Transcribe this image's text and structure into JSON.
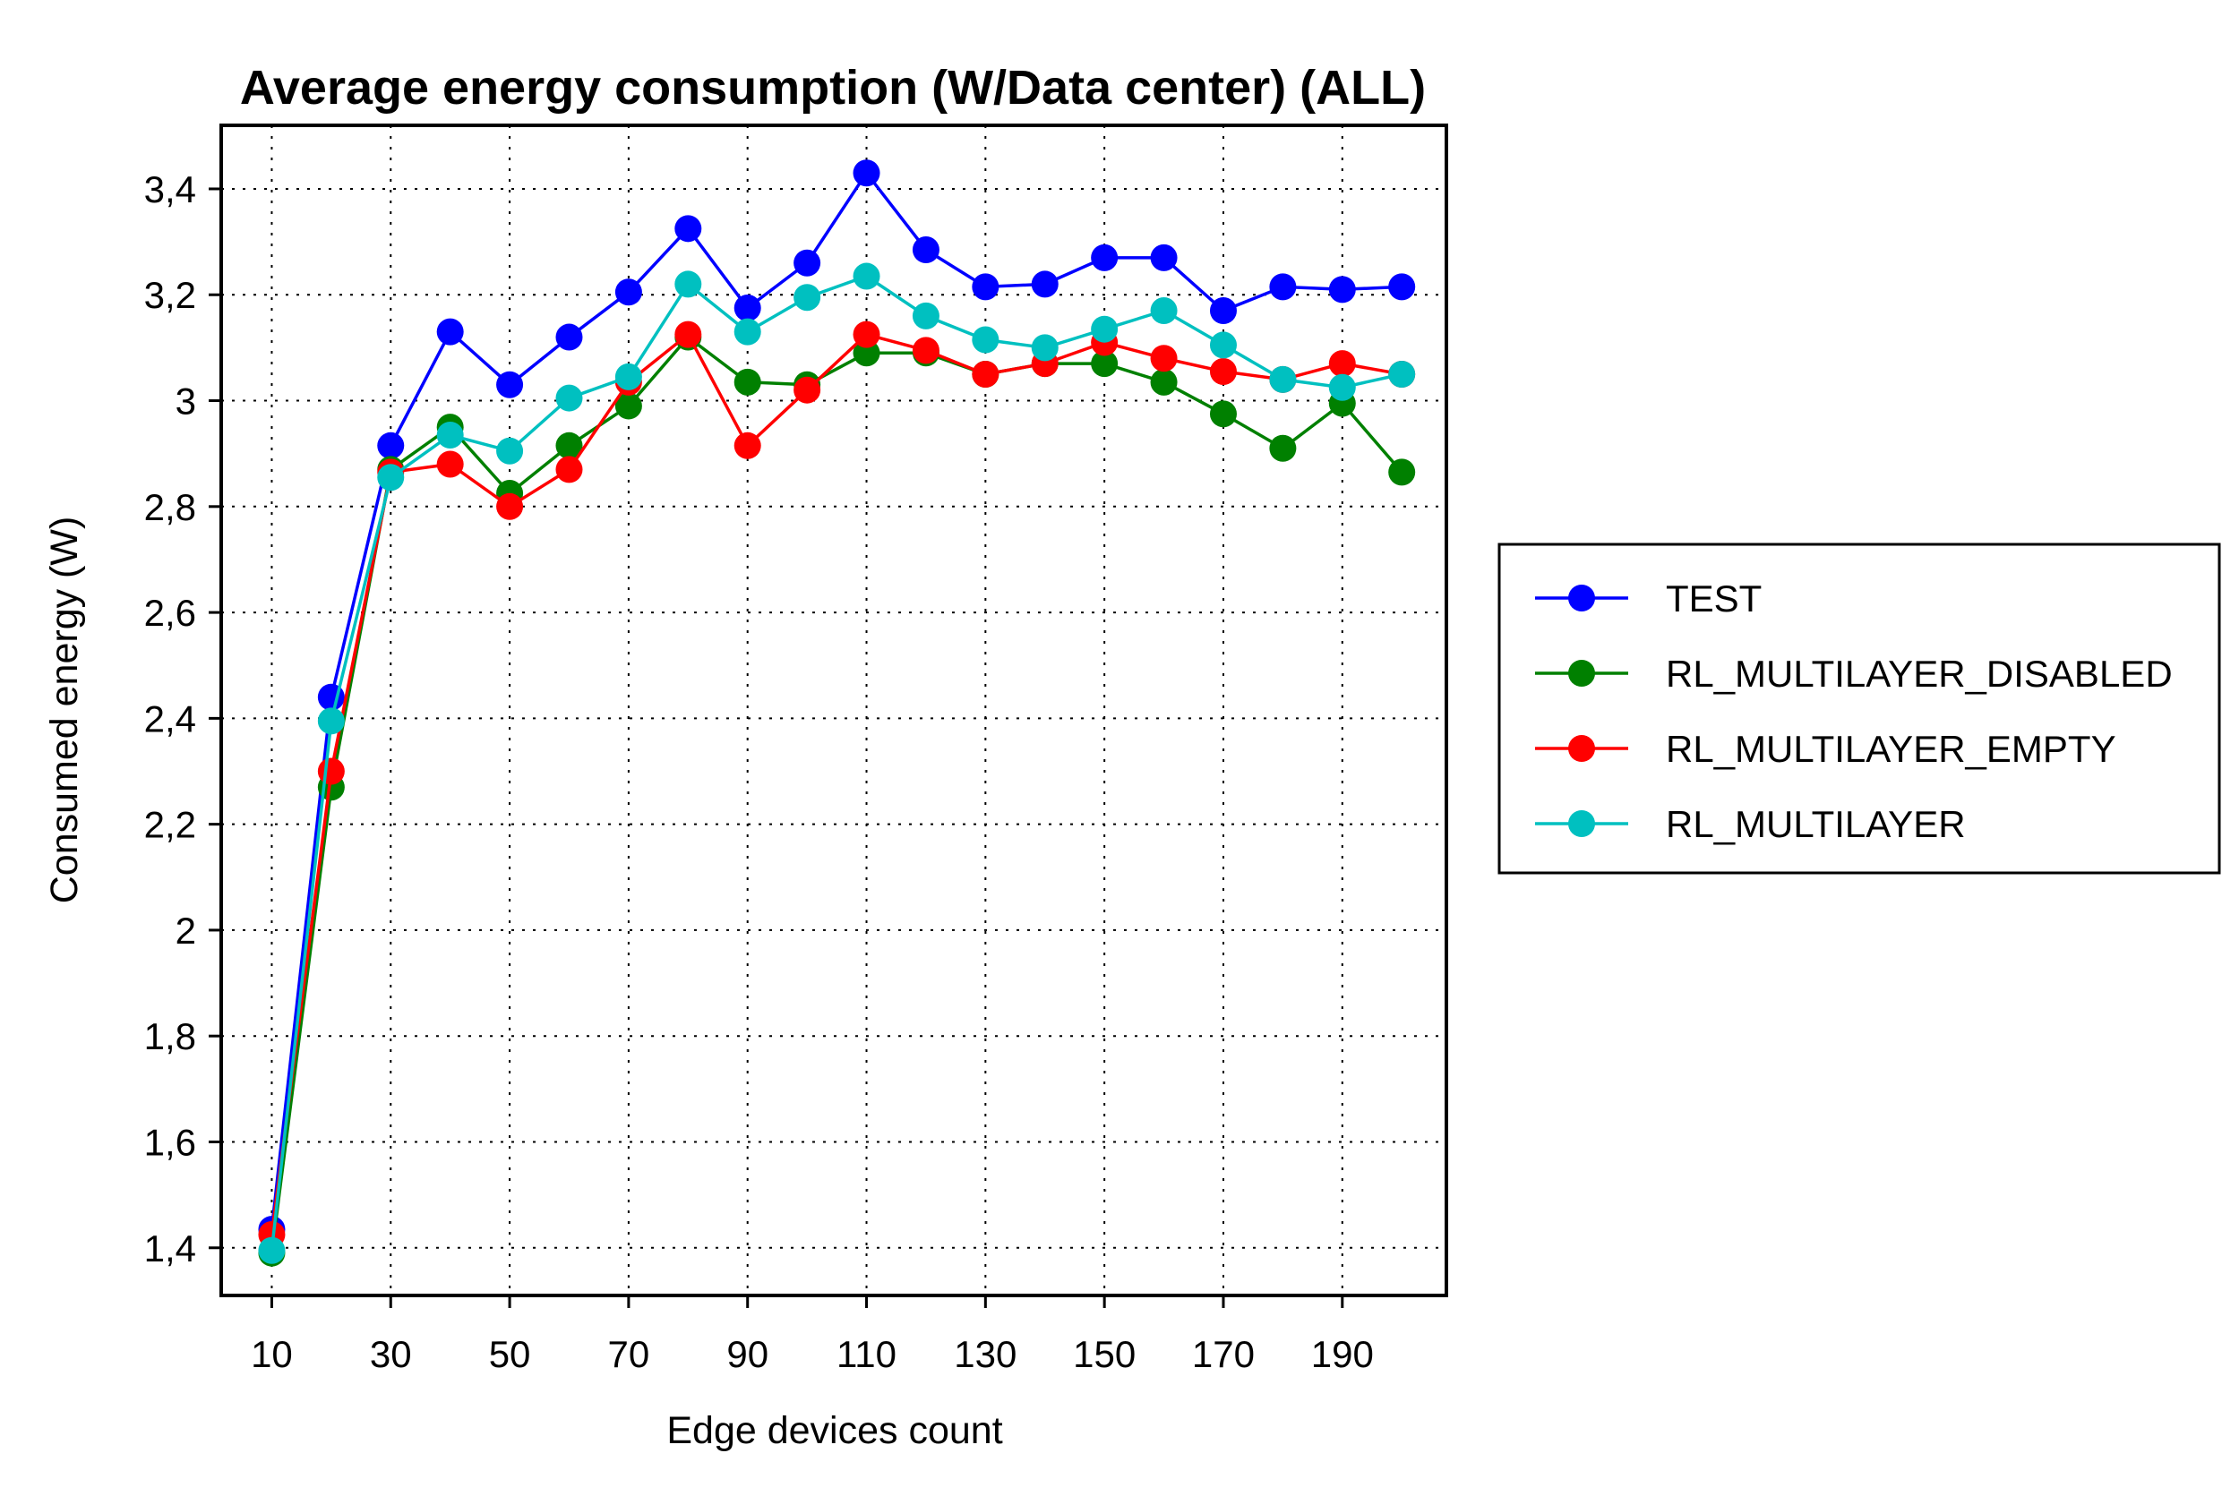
{
  "chart_data": {
    "type": "line",
    "title": "Average energy consumption (W/Data center) (ALL)",
    "xlabel": "Edge devices count",
    "ylabel": "Consumed energy (W)",
    "x": [
      10,
      20,
      30,
      40,
      50,
      60,
      70,
      80,
      90,
      100,
      110,
      120,
      130,
      140,
      150,
      160,
      170,
      180,
      190,
      200
    ],
    "xticks": [
      10,
      30,
      50,
      70,
      90,
      110,
      130,
      150,
      170,
      190
    ],
    "xlim": [
      1.5,
      207.5
    ],
    "yticks": [
      1.4,
      1.6,
      1.8,
      2.0,
      2.2,
      2.4,
      2.6,
      2.8,
      3.0,
      3.2,
      3.4
    ],
    "ytick_labels": [
      "1,4",
      "1,6",
      "1,8",
      "2",
      "2,2",
      "2,4",
      "2,6",
      "2,8",
      "3",
      "3,2",
      "3,4"
    ],
    "ylim": [
      1.31,
      3.52
    ],
    "grid": true,
    "legend_position": "right",
    "series": [
      {
        "name": "TEST",
        "color": "#0000ff",
        "values": [
          1.435,
          2.44,
          2.915,
          3.13,
          3.03,
          3.12,
          3.205,
          3.325,
          3.175,
          3.26,
          3.43,
          3.285,
          3.215,
          3.22,
          3.27,
          3.27,
          3.17,
          3.215,
          3.21,
          3.215
        ]
      },
      {
        "name": "RL_MULTILAYER_DISABLED",
        "color": "#008000",
        "values": [
          1.39,
          2.27,
          2.87,
          2.95,
          2.825,
          2.915,
          2.99,
          3.12,
          3.035,
          3.03,
          3.09,
          3.09,
          3.05,
          3.07,
          3.07,
          3.035,
          2.975,
          2.91,
          2.995,
          2.865
        ]
      },
      {
        "name": "RL_MULTILAYER_EMPTY",
        "color": "#ff0000",
        "values": [
          1.425,
          2.3,
          2.865,
          2.88,
          2.8,
          2.87,
          3.035,
          3.125,
          2.915,
          3.02,
          3.125,
          3.095,
          3.05,
          3.07,
          3.11,
          3.08,
          3.055,
          3.04,
          3.07,
          3.05
        ]
      },
      {
        "name": "RL_MULTILAYER",
        "color": "#00c0c0",
        "values": [
          1.395,
          2.395,
          2.855,
          2.935,
          2.905,
          3.005,
          3.045,
          3.22,
          3.13,
          3.195,
          3.235,
          3.16,
          3.115,
          3.1,
          3.135,
          3.17,
          3.105,
          3.04,
          3.025,
          3.05
        ]
      }
    ]
  }
}
